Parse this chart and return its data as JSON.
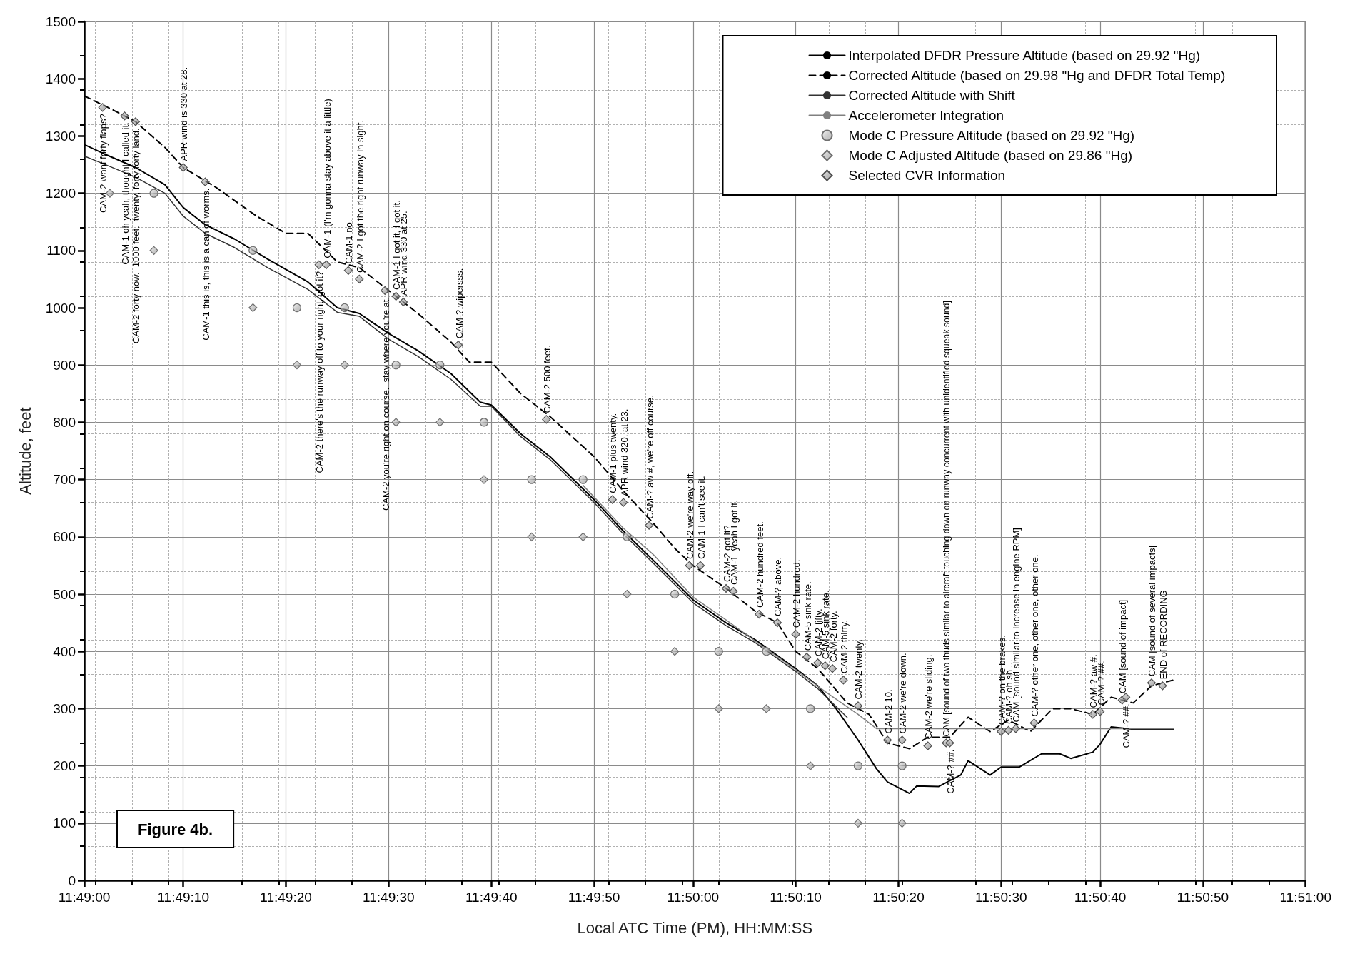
{
  "chart_data": {
    "type": "line",
    "xlabel": "Local ATC Time (PM), HH:MM:SS",
    "ylabel": "Altitude, feet",
    "xlim": [
      11.8167,
      11.85
    ],
    "ylim": [
      0,
      1500
    ],
    "xticks": [
      {
        "value": 11.8167,
        "label": "11:49:00"
      },
      {
        "value": 11.8194,
        "label": "11:49:10"
      },
      {
        "value": 11.8222,
        "label": "11:49:20"
      },
      {
        "value": 11.825,
        "label": "11:49:30"
      },
      {
        "value": 11.8278,
        "label": "11:49:40"
      },
      {
        "value": 11.8306,
        "label": "11:49:50"
      },
      {
        "value": 11.8333,
        "label": "11:50:00"
      },
      {
        "value": 11.8361,
        "label": "11:50:10"
      },
      {
        "value": 11.8389,
        "label": "11:50:20"
      },
      {
        "value": 11.8417,
        "label": "11:50:30"
      },
      {
        "value": 11.8444,
        "label": "11:50:40"
      },
      {
        "value": 11.8472,
        "label": "11:50:50"
      },
      {
        "value": 11.85,
        "label": "11:51:00"
      }
    ],
    "yticks": [
      0,
      100,
      200,
      300,
      400,
      500,
      600,
      700,
      800,
      900,
      1000,
      1100,
      1200,
      1300,
      1400,
      1500
    ],
    "grid": true,
    "legend": "top right",
    "series": [
      {
        "name": "Interpolated DFDR Pressure Altitude (based on 29.92 \"Hg)",
        "color": "#000000",
        "line_style": "solid",
        "marker": "none",
        "x": [
          11.8167,
          11.8172,
          11.8181,
          11.8189,
          11.8194,
          11.82,
          11.8208,
          11.8217,
          11.8228,
          11.8236,
          11.8242,
          11.825,
          11.8258,
          11.8267,
          11.8275,
          11.8278,
          11.8286,
          11.8294,
          11.8306,
          11.8314,
          11.8322,
          11.8333,
          11.8342,
          11.835,
          11.8361,
          11.8367,
          11.8372,
          11.8378,
          11.8383,
          11.8386,
          11.8392,
          11.8394,
          11.84,
          11.8406,
          11.8408,
          11.8414,
          11.8417,
          11.8422,
          11.8428,
          11.8433,
          11.8436,
          11.8442,
          11.8444,
          11.8447,
          11.8453,
          11.8464
        ],
        "values": [
          1285,
          1270,
          1245,
          1215,
          1175,
          1145,
          1120,
          1085,
          1045,
          1000,
          990,
          955,
          925,
          885,
          835,
          830,
          780,
          740,
          665,
          610,
          560,
          490,
          450,
          420,
          370,
          340,
          300,
          245,
          195,
          172,
          152,
          165,
          164,
          184,
          209,
          184,
          198,
          198,
          221,
          221,
          213,
          224,
          238,
          268,
          264,
          264
        ]
      },
      {
        "name": "Corrected Altitude (based on 29.98 \"Hg and DFDR Total Temp)",
        "type": "line",
        "color": "#000000",
        "line_style": "dashed",
        "marker": "none",
        "x": [
          11.8167,
          11.8175,
          11.8181,
          11.8189,
          11.8194,
          11.8203,
          11.8214,
          11.8222,
          11.8228,
          11.8236,
          11.8242,
          11.825,
          11.8258,
          11.8267,
          11.8272,
          11.8278,
          11.8286,
          11.8294,
          11.8306,
          11.8314,
          11.8322,
          11.8328,
          11.8333,
          11.8342,
          11.835,
          11.8356,
          11.8361,
          11.8367,
          11.8375,
          11.8381,
          11.8386,
          11.8392,
          11.8397,
          11.8403,
          11.8408,
          11.8414,
          11.8419,
          11.8425,
          11.8431,
          11.8436,
          11.8442,
          11.8447,
          11.8453,
          11.8458,
          11.8464
        ],
        "values": [
          1370,
          1345,
          1325,
          1280,
          1245,
          1210,
          1160,
          1130,
          1130,
          1080,
          1070,
          1030,
          990,
          940,
          905,
          905,
          850,
          810,
          740,
          680,
          625,
          580,
          550,
          510,
          470,
          450,
          400,
          370,
          310,
          290,
          240,
          230,
          250,
          250,
          285,
          260,
          280,
          260,
          300,
          300,
          290,
          320,
          310,
          340,
          350
        ]
      },
      {
        "name": "Corrected Altitude with Shift",
        "type": "line",
        "color": "#333333",
        "line_style": "solid",
        "marker": "none",
        "x": [
          11.8167,
          11.8172,
          11.8181,
          11.8189,
          11.8194,
          11.82,
          11.8208,
          11.8217,
          11.8228,
          11.8236,
          11.8242,
          11.825,
          11.8258,
          11.8267,
          11.8275,
          11.8278,
          11.8286,
          11.8294,
          11.8306,
          11.8314,
          11.8322,
          11.8333,
          11.8342,
          11.835,
          11.8361,
          11.8367,
          11.8375
        ],
        "values": [
          1265,
          1252,
          1228,
          1200,
          1160,
          1130,
          1105,
          1070,
          1032,
          992,
          985,
          945,
          915,
          875,
          828,
          828,
          775,
          735,
          660,
          605,
          555,
          485,
          445,
          415,
          365,
          335,
          285
        ]
      },
      {
        "name": "Accelerometer Integration",
        "type": "line",
        "color": "#808080",
        "line_style": "solid",
        "marker": "none",
        "x": [
          11.8303,
          11.8314,
          11.8322,
          11.8333,
          11.8342,
          11.835,
          11.8361,
          11.8369,
          11.8378,
          11.8383,
          11.8464
        ],
        "values": [
          690,
          615,
          570,
          495,
          455,
          418,
          368,
          330,
          290,
          265,
          265
        ]
      },
      {
        "name": "Mode C Pressure Altitude (based on 29.92 \"Hg)",
        "type": "scatter",
        "color": "#707070",
        "marker": "circle",
        "x": [
          11.8186,
          11.8213,
          11.8225,
          11.8238,
          11.8252,
          11.8264,
          11.8276,
          11.8289,
          11.8303,
          11.8315,
          11.8328,
          11.834,
          11.8353,
          11.8365,
          11.8378,
          11.839
        ],
        "values": [
          1200,
          1100,
          1000,
          1000,
          900,
          900,
          800,
          700,
          700,
          600,
          500,
          400,
          400,
          300,
          200,
          200
        ]
      },
      {
        "name": "Mode C Adjusted Altitude (based on 29.86 \"Hg)",
        "type": "scatter",
        "color": "#707070",
        "marker": "diamond",
        "x": [
          11.8174,
          11.8186,
          11.8213,
          11.8225,
          11.8238,
          11.8252,
          11.8264,
          11.8276,
          11.8289,
          11.8303,
          11.8315,
          11.8328,
          11.834,
          11.8353,
          11.8365,
          11.8378,
          11.839
        ],
        "values": [
          1200,
          1100,
          1000,
          900,
          900,
          800,
          800,
          700,
          600,
          600,
          500,
          400,
          300,
          300,
          200,
          100,
          100
        ]
      },
      {
        "name": "Selected CVR Information",
        "type": "scatter",
        "color": "#505050",
        "marker": "diamond",
        "x": [
          11.8172,
          11.8178,
          11.8181,
          11.8194,
          11.82,
          11.8231,
          11.8233,
          11.8239,
          11.8242,
          11.8249,
          11.8252,
          11.8254,
          11.8269,
          11.8293,
          11.8311,
          11.8314,
          11.8321,
          11.8332,
          11.8335,
          11.8342,
          11.8344,
          11.8351,
          11.8356,
          11.8361,
          11.8364,
          11.8367,
          11.8369,
          11.8371,
          11.8374,
          11.8378,
          11.8386,
          11.839,
          11.8397,
          11.8402,
          11.8403,
          11.8417,
          11.8419,
          11.8421,
          11.8426,
          11.8442,
          11.8444,
          11.845,
          11.8451,
          11.8458,
          11.8461
        ],
        "values": [
          1350,
          1335,
          1325,
          1245,
          1220,
          1075,
          1075,
          1065,
          1050,
          1030,
          1020,
          1010,
          935,
          805,
          665,
          660,
          620,
          550,
          550,
          510,
          505,
          465,
          450,
          430,
          390,
          380,
          375,
          370,
          350,
          305,
          245,
          245,
          235,
          240,
          240,
          260,
          262,
          265,
          275,
          290,
          295,
          315,
          320,
          345,
          340
        ]
      }
    ],
    "annotations": [
      "Figure 4b.",
      {
        "text": "CAM-2 want forty flaps?",
        "x": 11.8172,
        "y": 1350
      },
      {
        "text": "CAM-1 oh yeah, thought I called it.",
        "x": 11.8178,
        "y": 1335
      },
      {
        "text": "CAM-2 forty now.  1000 feet.  twenty, forty forty land.",
        "x": 11.8181,
        "y": 1325
      },
      {
        "text": "APR wind is 330 at 28.",
        "x": 11.8194,
        "y": 1245
      },
      {
        "text": "CAM-1 this is, this is a can of worms.",
        "x": 11.82,
        "y": 1220
      },
      {
        "text": "CAM-2 there's the runway off to your right, got it?",
        "x": 11.8231,
        "y": 1075
      },
      {
        "text": "CAM-1 (I'm gonna stay above it a little)",
        "x": 11.8233,
        "y": 1075
      },
      {
        "text": "CAM-1 no.",
        "x": 11.8239,
        "y": 1065
      },
      {
        "text": "CAM-2 I got the right runway in sight.",
        "x": 11.8242,
        "y": 1050
      },
      {
        "text": "CAM-2 you're right on course.  stay where you're at.",
        "x": 11.8249,
        "y": 1030
      },
      {
        "text": "CAM-1 I got it, I got it.",
        "x": 11.8252,
        "y": 1020
      },
      {
        "text": "APR wind 330 at 25.",
        "x": 11.8254,
        "y": 1010
      },
      {
        "text": "CAM-? wipersss.",
        "x": 11.8269,
        "y": 935
      },
      {
        "text": "CAM-2 500 feet.",
        "x": 11.8293,
        "y": 805
      },
      {
        "text": "CAM-1 plus twenty.",
        "x": 11.8311,
        "y": 665
      },
      {
        "text": "APR wind 320, at 23.",
        "x": 11.8314,
        "y": 660
      },
      {
        "text": "CAM-? aw #, we're off course.",
        "x": 11.8321,
        "y": 620
      },
      {
        "text": "CAM-2 we're way off.",
        "x": 11.8332,
        "y": 550
      },
      {
        "text": "CAM-1 I can't see it.",
        "x": 11.8335,
        "y": 550
      },
      {
        "text": "CAM-2 got it?",
        "x": 11.8342,
        "y": 510
      },
      {
        "text": "CAM-1  yeah I got it.",
        "x": 11.8344,
        "y": 505
      },
      {
        "text": "CAM-2 hundred feet.",
        "x": 11.8351,
        "y": 465
      },
      {
        "text": "CAM-? above.",
        "x": 11.8356,
        "y": 450
      },
      {
        "text": "CAM-2 hundred.",
        "x": 11.8361,
        "y": 430
      },
      {
        "text": "CAM-5 sink rate.",
        "x": 11.8364,
        "y": 390
      },
      {
        "text": "CAM-2 fifty.",
        "x": 11.8367,
        "y": 380
      },
      {
        "text": "CAM-5 sink rate.",
        "x": 11.8369,
        "y": 375
      },
      {
        "text": "CAM-2 forty.",
        "x": 11.8371,
        "y": 370
      },
      {
        "text": "CAM-2 thirty.",
        "x": 11.8374,
        "y": 350
      },
      {
        "text": "CAM-2 twenty.",
        "x": 11.8378,
        "y": 305
      },
      {
        "text": "CAM-2 10.",
        "x": 11.8386,
        "y": 245
      },
      {
        "text": "CAM-2 we're down.",
        "x": 11.839,
        "y": 245
      },
      {
        "text": "CAM-2 we're sliding.",
        "x": 11.8397,
        "y": 235
      },
      {
        "text": "CAM [sound of two thuds similar to aircraft touching down on runway concurrent with unidentified squeak sound]",
        "x": 11.8402,
        "y": 240
      },
      {
        "text": "CAM-? ##.",
        "x": 11.8403,
        "y": 240
      },
      {
        "text": "CAM-? on the brakes.",
        "x": 11.8417,
        "y": 260
      },
      {
        "text": "CAM-? oh sh ...",
        "x": 11.8419,
        "y": 262
      },
      {
        "text": "CAM [sound similar to increase in engine RPM]",
        "x": 11.8421,
        "y": 265
      },
      {
        "text": "CAM-? other one, other one, other one.",
        "x": 11.8426,
        "y": 275
      },
      {
        "text": "CAM-? aw #.",
        "x": 11.8442,
        "y": 290
      },
      {
        "text": "CAM-? ##.",
        "x": 11.8444,
        "y": 295
      },
      {
        "text": "CAM [sound of impact]",
        "x": 11.845,
        "y": 315
      },
      {
        "text": "CAM-? ##.",
        "x": 11.8451,
        "y": 320
      },
      {
        "text": "CAM [sound of several impacts]",
        "x": 11.8458,
        "y": 345
      },
      {
        "text": "END of RECORDING",
        "x": 11.8461,
        "y": 340
      }
    ]
  }
}
